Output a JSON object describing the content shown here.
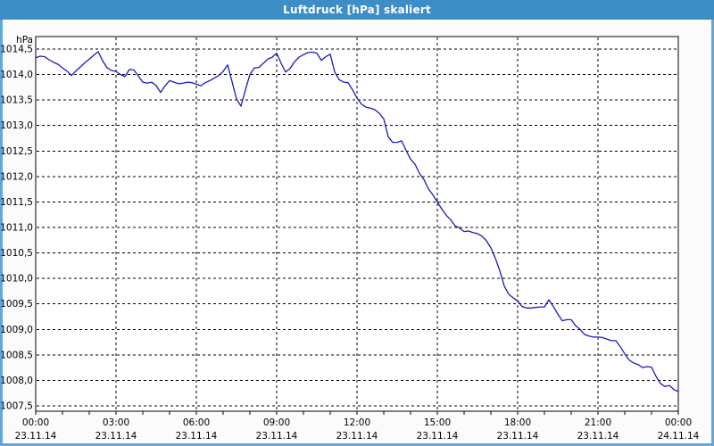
{
  "window": {
    "title": "Luftdruck [hPa] skaliert"
  },
  "colors": {
    "titlebar": "#3d8dc6",
    "window_border": "#5fa8dc",
    "content_bg": "#fbfbfb",
    "plot_bg": "#ffffff",
    "axis": "#000000",
    "grid": "#000000",
    "line": "#1a1abf",
    "label_text": "#000000"
  },
  "chart_data": {
    "type": "line",
    "title": "Luftdruck [hPa] skaliert",
    "ylabel": "hPa",
    "ylim": [
      1007.5,
      1014.5
    ],
    "ytick_step": 0.5,
    "ytick_labels": [
      "1014,5",
      "1014,0",
      "1013,5",
      "1013,0",
      "1012,5",
      "1012,0",
      "1011,5",
      "1011,0",
      "1010,5",
      "1010,0",
      "1009,5",
      "1009,0",
      "1008,5",
      "1008,0",
      "1007,5"
    ],
    "x_minutes_range": [
      0,
      1440
    ],
    "xticks": [
      {
        "time": "00:00",
        "date": "23.11.14"
      },
      {
        "time": "03:00",
        "date": "23.11.14"
      },
      {
        "time": "06:00",
        "date": "23.11.14"
      },
      {
        "time": "09:00",
        "date": "23.11.14"
      },
      {
        "time": "12:00",
        "date": "23.11.14"
      },
      {
        "time": "15:00",
        "date": "23.11.14"
      },
      {
        "time": "18:00",
        "date": "23.11.14"
      },
      {
        "time": "21:00",
        "date": "23.11.14"
      },
      {
        "time": "00:00",
        "date": "24.11.14"
      }
    ],
    "grid": "dashed",
    "legend": "none",
    "series": [
      {
        "name": "Luftdruck",
        "unit": "hPa",
        "points_min_value": [
          [
            0,
            1014.33
          ],
          [
            10,
            1014.36
          ],
          [
            20,
            1014.35
          ],
          [
            30,
            1014.29
          ],
          [
            40,
            1014.24
          ],
          [
            50,
            1014.2
          ],
          [
            60,
            1014.13
          ],
          [
            70,
            1014.07
          ],
          [
            80,
            1013.98
          ],
          [
            90,
            1014.07
          ],
          [
            100,
            1014.15
          ],
          [
            110,
            1014.23
          ],
          [
            120,
            1014.3
          ],
          [
            130,
            1014.38
          ],
          [
            140,
            1014.45
          ],
          [
            150,
            1014.27
          ],
          [
            160,
            1014.13
          ],
          [
            170,
            1014.08
          ],
          [
            180,
            1014.06
          ],
          [
            190,
            1014.0
          ],
          [
            200,
            1013.96
          ],
          [
            210,
            1014.1
          ],
          [
            220,
            1014.09
          ],
          [
            230,
            1013.97
          ],
          [
            240,
            1013.85
          ],
          [
            250,
            1013.83
          ],
          [
            260,
            1013.85
          ],
          [
            270,
            1013.78
          ],
          [
            280,
            1013.65
          ],
          [
            290,
            1013.78
          ],
          [
            300,
            1013.88
          ],
          [
            310,
            1013.85
          ],
          [
            320,
            1013.82
          ],
          [
            330,
            1013.83
          ],
          [
            340,
            1013.85
          ],
          [
            350,
            1013.84
          ],
          [
            360,
            1013.81
          ],
          [
            370,
            1013.78
          ],
          [
            380,
            1013.84
          ],
          [
            390,
            1013.88
          ],
          [
            400,
            1013.93
          ],
          [
            410,
            1013.98
          ],
          [
            420,
            1014.06
          ],
          [
            430,
            1014.19
          ],
          [
            440,
            1013.86
          ],
          [
            450,
            1013.52
          ],
          [
            460,
            1013.38
          ],
          [
            470,
            1013.7
          ],
          [
            480,
            1014.0
          ],
          [
            490,
            1014.13
          ],
          [
            500,
            1014.14
          ],
          [
            510,
            1014.22
          ],
          [
            520,
            1014.3
          ],
          [
            530,
            1014.34
          ],
          [
            540,
            1014.42
          ],
          [
            550,
            1014.22
          ],
          [
            560,
            1014.05
          ],
          [
            570,
            1014.12
          ],
          [
            580,
            1014.25
          ],
          [
            590,
            1014.34
          ],
          [
            600,
            1014.39
          ],
          [
            610,
            1014.43
          ],
          [
            620,
            1014.44
          ],
          [
            630,
            1014.42
          ],
          [
            640,
            1014.28
          ],
          [
            650,
            1014.35
          ],
          [
            660,
            1014.4
          ],
          [
            670,
            1014.05
          ],
          [
            680,
            1013.9
          ],
          [
            690,
            1013.85
          ],
          [
            700,
            1013.84
          ],
          [
            710,
            1013.7
          ],
          [
            720,
            1013.54
          ],
          [
            730,
            1013.42
          ],
          [
            740,
            1013.36
          ],
          [
            750,
            1013.34
          ],
          [
            760,
            1013.31
          ],
          [
            770,
            1013.24
          ],
          [
            780,
            1013.13
          ],
          [
            790,
            1012.78
          ],
          [
            800,
            1012.67
          ],
          [
            810,
            1012.67
          ],
          [
            820,
            1012.7
          ],
          [
            830,
            1012.51
          ],
          [
            840,
            1012.34
          ],
          [
            850,
            1012.24
          ],
          [
            860,
            1012.06
          ],
          [
            870,
            1011.94
          ],
          [
            880,
            1011.76
          ],
          [
            890,
            1011.64
          ],
          [
            900,
            1011.5
          ],
          [
            910,
            1011.36
          ],
          [
            920,
            1011.24
          ],
          [
            930,
            1011.15
          ],
          [
            940,
            1011.03
          ],
          [
            950,
            1010.99
          ],
          [
            960,
            1010.92
          ],
          [
            970,
            1010.93
          ],
          [
            980,
            1010.9
          ],
          [
            990,
            1010.88
          ],
          [
            1000,
            1010.83
          ],
          [
            1010,
            1010.74
          ],
          [
            1020,
            1010.6
          ],
          [
            1030,
            1010.4
          ],
          [
            1040,
            1010.15
          ],
          [
            1050,
            1009.85
          ],
          [
            1060,
            1009.69
          ],
          [
            1070,
            1009.62
          ],
          [
            1080,
            1009.56
          ],
          [
            1090,
            1009.45
          ],
          [
            1100,
            1009.42
          ],
          [
            1110,
            1009.42
          ],
          [
            1120,
            1009.43
          ],
          [
            1130,
            1009.44
          ],
          [
            1140,
            1009.44
          ],
          [
            1150,
            1009.58
          ],
          [
            1160,
            1009.45
          ],
          [
            1170,
            1009.3
          ],
          [
            1180,
            1009.17
          ],
          [
            1190,
            1009.19
          ],
          [
            1200,
            1009.19
          ],
          [
            1210,
            1009.07
          ],
          [
            1220,
            1009.0
          ],
          [
            1230,
            1008.9
          ],
          [
            1240,
            1008.87
          ],
          [
            1250,
            1008.85
          ],
          [
            1260,
            1008.85
          ],
          [
            1270,
            1008.84
          ],
          [
            1280,
            1008.81
          ],
          [
            1290,
            1008.78
          ],
          [
            1300,
            1008.78
          ],
          [
            1310,
            1008.66
          ],
          [
            1320,
            1008.52
          ],
          [
            1330,
            1008.4
          ],
          [
            1340,
            1008.34
          ],
          [
            1350,
            1008.31
          ],
          [
            1360,
            1008.25
          ],
          [
            1370,
            1008.27
          ],
          [
            1380,
            1008.26
          ],
          [
            1390,
            1008.08
          ],
          [
            1400,
            1007.94
          ],
          [
            1410,
            1007.88
          ],
          [
            1420,
            1007.9
          ],
          [
            1430,
            1007.82
          ],
          [
            1440,
            1007.78
          ]
        ]
      }
    ]
  }
}
